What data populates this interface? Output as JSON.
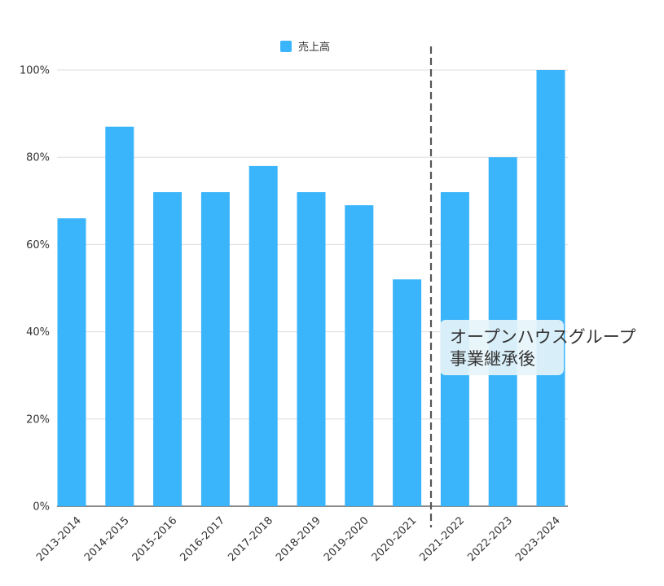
{
  "chart_data": {
    "type": "bar",
    "categories": [
      "2013-2014",
      "2014-2015",
      "2015-2016",
      "2016-2017",
      "2017-2018",
      "2018-2019",
      "2019-2020",
      "2020-2021",
      "2021-2022",
      "2022-2023",
      "2023-2024"
    ],
    "series": [
      {
        "name": "売上高",
        "values": [
          66,
          87,
          72,
          72,
          78,
          72,
          69,
          52,
          72,
          80,
          100
        ],
        "color": "#3ab4fb"
      }
    ],
    "ylim": [
      0,
      100
    ],
    "yticks": [
      "0%",
      "20%",
      "40%",
      "60%",
      "80%",
      "100%"
    ],
    "ytick_values": [
      0,
      20,
      40,
      60,
      80,
      100
    ],
    "grid": true,
    "legend_position": "top-center",
    "divider": {
      "after_category": "2020-2021",
      "style": "dashed",
      "color": "#555555"
    },
    "annotation": {
      "lines": [
        "オープンハウスグループ",
        "事業継承後"
      ]
    }
  }
}
